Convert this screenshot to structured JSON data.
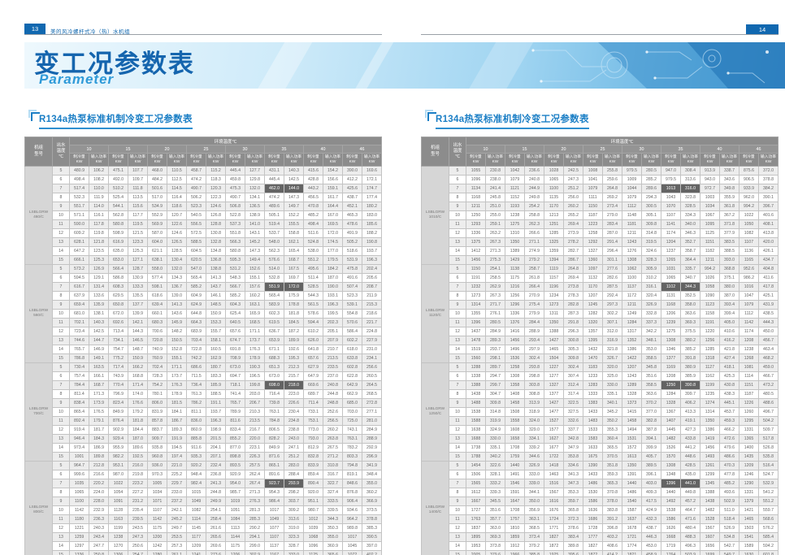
{
  "page": {
    "left_page_number": "13",
    "right_page_number": "14",
    "header_text": "美的风冷螺杆式冷（热）水机组",
    "banner_title": "变工况参数表",
    "banner_subtitle": "Parameter"
  },
  "colors": {
    "brand_blue": "#1168b0",
    "title_blue": "#1a7ec5",
    "header_gray": "#8c8c8c",
    "highlight_gray": "#636363",
    "stripe_gray": "#ededed"
  },
  "tables": [
    {
      "title": "R134a热泵标准机制冷变工况参数表",
      "header": {
        "model": "机组型号",
        "outlet": "出水温度℃",
        "ambient": "环境温度℃",
        "temps": [
          "10",
          "15",
          "20",
          "25",
          "30",
          "35",
          "40",
          "46"
        ],
        "capacity_label": "制冷量",
        "power_label": "输入功率",
        "unit": "KW"
      },
      "highlight": {
        "outlet": "7",
        "temp": "35"
      },
      "groups": [
        {
          "model": "LSBLGRW460/C",
          "rows": [
            {
              "t": "5",
              "v": "480.9 106.2 475.1 107.7 468.0 110.5 458.7 115.2 445.4 127.7 431.1 140.3 415.6 154.2 390.0 169.6"
            },
            {
              "t": "6",
              "v": "498.4 108.2 492.0 109.7 484.2 112.5 474.2 118.3 459.8 129.8 445.4 142.5 428.8 156.6 412.2 172.1"
            },
            {
              "t": "7",
              "v": "517.4 110.0 510.2 111.8 501.6 114.5 490.7 120.3 475.3 132.0 462.0 144.0 443.2 159.1 425.6 174.7"
            },
            {
              "t": "8",
              "v": "532.3 111.9 525.4 113.5 517.0 116.4 506.2 122.3 490.7 134.1 474.2 147.3 456.5 161.7 438.7 177.4"
            },
            {
              "t": "9",
              "v": "551.7 114.0 544.1 115.6 534.9 118.6 523.3 124.6 506.8 136.5 489.6 149.7 470.8 164.4 452.1 180.2"
            },
            {
              "t": "10",
              "v": "571.1 116.1 562.8 117.7 552.9 120.7 540.5 126.8 522.8 138.9 505.1 152.2 485.2 167.0 465.3 183.0"
            },
            {
              "t": "11",
              "v": "590.0 117.8 580.8 119.5 569.9 122.6 556.5 128.8 537.3 141.0 519.4 155.5 498.4 169.5 478.6 185.6"
            },
            {
              "t": "12",
              "v": "609.2 119.8 598.9 121.5 587.0 124.6 572.5 130.8 551.8 143.1 533.7 158.8 511.6 172.0 491.9 188.2"
            },
            {
              "t": "13",
              "v": "628.1 121.8 616.9 123.3 604.0 126.5 588.5 132.8 566.3 145.2 548.0 162.1 524.8 174.5 505.2 190.8"
            },
            {
              "t": "14",
              "v": "647.2 123.5 635.0 125.3 621.1 128.5 604.5 134.8 580.8 147.3 562.3 165.4 538.0 177.0 518.6 193.7"
            },
            {
              "t": "15",
              "v": "666.1 125.3 653.0 127.1 638.1 130.4 620.5 136.8 595.3 149.4 576.6 168.7 551.2 179.5 531.9 196.3"
            }
          ]
        },
        {
          "model": "LSBLGRW560/C",
          "rows": [
            {
              "t": "5",
              "v": "573.2 126.9 566.4 128.7 558.0 132.0 547.0 138.8 531.2 152.6 514.0 167.5 495.6 184.2 475.8 202.4"
            },
            {
              "t": "6",
              "v": "594.5 129.1 586.8 130.9 577.4 134.3 565.4 141.3 548.3 155.1 532.8 169.7 511.4 187.0 491.6 205.6"
            },
            {
              "t": "7",
              "v": "616.7 131.4 608.3 133.3 598.1 136.7 585.2 143.7 566.7 157.6 551.9 172.0 528.5 190.0 507.4 208.7"
            },
            {
              "t": "8",
              "v": "637.9 133.6 629.5 135.5 618.6 139.0 604.9 146.1 585.2 160.2 565.4 175.9 544.3 193.1 523.3 211.9"
            },
            {
              "t": "9",
              "v": "659.4 135.9 650.8 137.7 639.4 141.3 624.9 148.5 604.3 163.1 583.9 178.8 561.5 196.3 539.1 215.3"
            },
            {
              "t": "10",
              "v": "681.0 138.1 672.0 139.9 660.1 143.6 644.8 150.9 625.4 165.9 602.3 181.8 578.6 199.5 554.8 218.6"
            },
            {
              "t": "11",
              "v": "702.1 140.3 692.6 142.1 680.3 145.9 664.3 153.3 640.5 168.5 619.5 184.5 594.4 202.3 570.6 221.7"
            },
            {
              "t": "12",
              "v": "723.4 142.5 713.4 144.3 700.6 148.2 683.9 155.7 657.6 171.1 636.7 187.2 610.2 205.1 586.4 224.8"
            },
            {
              "t": "13",
              "v": "744.6 144.7 734.1 146.5 720.8 150.5 703.4 158.1 674.7 173.7 653.9 189.9 626.0 207.9 602.2 227.9"
            },
            {
              "t": "14",
              "v": "765.7 146.9 754.7 148.7 740.9 152.8 722.8 160.5 691.8 176.3 671.1 192.6 641.8 210.7 618.0 231.0"
            },
            {
              "t": "15",
              "v": "786.8 149.1 775.2 150.9 760.9 155.1 742.2 162.9 708.9 178.9 688.3 195.3 657.6 213.5 633.8 234.1"
            }
          ]
        },
        {
          "model": "LSBLGRW700/C",
          "rows": [
            {
              "t": "5",
              "v": "730.4 163.5 717.4 166.2 702.4 171.1 686.6 180.7 673.0 190.3 651.3 212.3 627.9 233.5 602.8 256.6"
            },
            {
              "t": "6",
              "v": "757.4 166.1 743.9 168.8 728.3 173.7 711.5 183.3 694.7 196.5 673.0 215.7 647.9 237.0 622.8 260.5"
            },
            {
              "t": "7",
              "v": "784.4 168.7 770.4 171.4 754.2 176.3 736.4 185.9 718.1 199.8 698.0 218.0 669.6 240.8 642.9 264.5"
            },
            {
              "t": "8",
              "v": "811.4 171.3 796.9 174.0 780.1 178.9 761.3 188.5 741.4 203.0 716.4 223.0 689.7 244.8 662.9 268.5"
            },
            {
              "t": "9",
              "v": "838.4 173.9 823.4 176.6 806.0 181.5 786.2 191.1 765.7 206.7 739.8 226.6 711.4 248.8 685.0 272.8"
            },
            {
              "t": "10",
              "v": "865.4 176.5 849.9 179.2 831.9 184.1 811.1 193.7 789.9 210.3 763.1 230.4 733.1 252.6 703.0 277.1"
            },
            {
              "t": "11",
              "v": "892.4 179.1 876.4 181.8 857.8 186.7 836.0 196.3 811.6 213.5 784.8 234.8 753.1 256.5 725.0 281.0"
            },
            {
              "t": "12",
              "v": "919.4 181.7 902.9 184.4 883.7 189.3 860.9 198.9 833.4 216.7 806.5 238.8 773.0 260.2 743.1 284.9"
            },
            {
              "t": "13",
              "v": "946.4 184.3 929.4 187.0 909.7 191.9 885.8 201.5 855.2 220.0 828.2 243.0 793.0 263.8 763.1 288.9"
            },
            {
              "t": "14",
              "v": "973.4 186.9 955.9 189.6 935.8 194.5 911.6 204.1 877.0 223.1 849.9 247.1 812.9 267.5 783.2 292.9"
            },
            {
              "t": "15",
              "v": "1001 189.8 982.2 192.5 960.8 197.4 935.3 207.1 898.8 226.3 871.6 251.2 832.8 271.2 803.3 296.9"
            }
          ]
        },
        {
          "model": "LSBLGRW800/C",
          "rows": [
            {
              "t": "5",
              "v": "964.7 212.8 953.1 216.0 936.0 221.0 920.2 232.4 893.5 257.5 865.1 283.0 833.9 310.8 794.8 341.9"
            },
            {
              "t": "6",
              "v": "999.6 216.6 987.0 219.8 970.3 225.2 948.4 236.8 920.9 262.4 891.6 288.4 859.4 316.7 819.1 348.4"
            },
            {
              "t": "7",
              "v": "1035 220.2 1022 223.2 1005 229.7 982.4 241.3 954.0 267.4 923.7 293.9 890.4 322.7 848.6 355.0"
            },
            {
              "t": "8",
              "v": "1065 224.0 1054 227.2 1034 233.0 1015 244.8 985.7 271.3 954.3 298.2 920.0 327.4 876.8 360.2"
            },
            {
              "t": "9",
              "v": "1100 228.0 1091 231.2 1071 237.2 1049 249.9 1019 276.3 986.4 303.7 951.1 333.5 906.4 366.9"
            },
            {
              "t": "10",
              "v": "1142 232.9 1128 235.4 1107 242.1 1082 254.1 1051 281.3 1017 309.2 980.7 339.5 934.6 373.5"
            },
            {
              "t": "11",
              "v": "1180 236.3 1163 239.5 1142 245.2 1114 258.4 1084 285.3 1049 313.6 1012 344.3 964.2 378.8"
            },
            {
              "t": "12",
              "v": "1221 240.3 1199 243.5 1175 249.7 1145 261.6 1113 290.2 1077 319.0 1039 350.3 989.8 385.3"
            },
            {
              "t": "13",
              "v": "1259 243.4 1238 247.3 1200 253.5 1177 265.6 1144 294.1 1107 323.3 1068 355.0 1017 390.5"
            },
            {
              "t": "14",
              "v": "1297 247.7 1270 250.6 1242 257.3 1209 269.6 1175 299.0 1137 328.7 1096 360.9 1045 397.0"
            },
            {
              "t": "15",
              "v": "1336 250.8 1306 254.7 1280 261.1 1241 273.6 1206 302.9 1167 333.0 1125 365.6 1072 402.2"
            }
          ]
        }
      ]
    },
    {
      "title": "R134a热泵标准机制冷变工况参数表",
      "header": {
        "model": "机组型号",
        "outlet": "出水温度℃",
        "ambient": "环境温度℃",
        "temps": [
          "10",
          "15",
          "20",
          "25",
          "30",
          "35",
          "40",
          "46"
        ],
        "capacity_label": "制冷量",
        "power_label": "输入功率",
        "unit": "KW"
      },
      "highlight": {
        "outlet": "7",
        "temp": "35"
      },
      "groups": [
        {
          "model": "LSBLGRW1010/C",
          "rows": [
            {
              "t": "5",
              "v": "1055 230.8 1042 236.6 1028 242.5 1008 255.8 979.5 280.5 947.0 308.4 913.9 338.7 875.6 372.0"
            },
            {
              "t": "6",
              "v": "1096 238.0 1079 240.8 1065 247.3 1041 259.6 1009 285.2 979.5 313.6 943.0 343.6 906.5 378.8"
            },
            {
              "t": "7",
              "v": "1134 241.4 1121 244.9 1100 251.2 1079 264.8 1044 289.6 1013 316.0 972.7 349.8 933.9 384.2"
            },
            {
              "t": "8",
              "v": "1168 245.8 1152 249.8 1135 256.0 1111 269.2 1079 294.3 1043 323.8 1003 355.9 962.0 390.1"
            },
            {
              "t": "9",
              "v": "1211 251.0 1193 254.2 1170 260.2 1150 273.4 1112 300.5 1070 328.5 1034 361.8 994.2 396.7"
            },
            {
              "t": "10",
              "v": "1250 255.0 1238 258.8 1213 265.2 1187 279.0 1148 305.1 1107 334.3 1067 367.2 1022 401.6"
            },
            {
              "t": "11",
              "v": "1293 259.1 1275 262.3 1251 269.4 1223 283.4 1181 309.8 1141 340.0 1095 371.8 1050 408.1"
            },
            {
              "t": "12",
              "v": "1336 263.2 1310 266.6 1285 273.9 1258 287.0 1211 314.8 1174 346.3 1125 377.9 1082 413.8"
            },
            {
              "t": "13",
              "v": "1375 267.3 1350 271.1 1325 278.2 1292 291.4 1243 319.5 1204 352.7 1151 383.5 1107 420.0"
            },
            {
              "t": "14",
              "v": "1412 271.3 1389 274.9 1359 282.7 1327 296.4 1276 324.6 1237 358.7 1182 388.5 1136 426.1"
            },
            {
              "t": "15",
              "v": "1456 275.3 1429 279.2 1394 286.7 1360 301.1 1308 328.3 1265 364.4 1211 393.0 1165 434.7"
            }
          ]
        },
        {
          "model": "LSBLGRW1120/C",
          "rows": [
            {
              "t": "5",
              "v": "1150 254.1 1138 258.7 1119 264.8 1097 277.6 1062 305.9 1031 335.7 994.2 368.8 952.6 404.8"
            },
            {
              "t": "6",
              "v": "1191 258.5 1175 261.8 1157 269.4 1132 282.6 1100 310.2 1065 340.7 1026 375.1 986.2 411.6"
            },
            {
              "t": "7",
              "v": "1232 262.9 1216 266.4 1196 273.8 1170 287.5 1137 316.1 1102 344.3 1058 380.0 1016 417.8"
            },
            {
              "t": "8",
              "v": "1273 267.3 1256 270.9 1234 278.3 1207 292.4 1172 320.4 1131 352.5 1090 387.0 1047 425.1"
            },
            {
              "t": "9",
              "v": "1314 271.7 1296 275.4 1273 282.8 1245 297.3 1211 326.9 1168 358.0 1123 393.4 1079 431.9"
            },
            {
              "t": "10",
              "v": "1355 276.1 1336 279.9 1311 287.3 1282 302.2 1249 332.8 1206 363.6 1158 399.4 1112 438.5"
            },
            {
              "t": "11",
              "v": "1396 280.5 1376 284.4 1350 291.8 1320 307.1 1284 337.3 1239 369.3 1191 405.0 1142 444.3"
            },
            {
              "t": "12",
              "v": "1437 284.9 1416 288.9 1388 296.3 1357 312.0 1317 342.2 1275 375.5 1220 410.6 1174 450.0"
            },
            {
              "t": "13",
              "v": "1478 289.3 1456 293.4 1427 300.8 1395 316.9 1352 348.1 1308 380.2 1256 416.2 1208 456.7"
            },
            {
              "t": "14",
              "v": "1519 293.7 1496 297.9 1465 305.3 1432 321.8 1386 353.0 1346 385.2 1285 421.8 1238 463.4"
            },
            {
              "t": "15",
              "v": "1560 298.1 1536 302.4 1504 309.8 1470 326.7 1422 358.5 1377 391.8 1318 427.4 1268 468.2"
            }
          ]
        },
        {
          "model": "LSBLGRW1250/C",
          "rows": [
            {
              "t": "5",
              "v": "1288 289.7 1258 293.8 1227 302.4 1183 320.0 1207 345.8 1169 380.9 1127 418.1 1081 459.0"
            },
            {
              "t": "6",
              "v": "1338 294.7 1308 298.8 1277 307.4 1233 325.0 1243 351.6 1208 385.9 1162 425.3 1114 466.7"
            },
            {
              "t": "7",
              "v": "1388 299.7 1358 303.8 1327 312.4 1283 330.0 1289 358.5 1250 390.8 1199 430.8 1151 473.2"
            },
            {
              "t": "8",
              "v": "1438 304.7 1408 308.8 1377 317.4 1333 335.1 1328 363.6 1284 399.7 1235 438.3 1187 480.5"
            },
            {
              "t": "9",
              "v": "1488 309.8 1458 313.9 1427 322.5 1383 340.1 1373 370.2 1328 406.2 1274 445.1 1226 488.6"
            },
            {
              "t": "10",
              "v": "1538 314.8 1508 318.9 1477 327.5 1433 345.2 1415 377.0 1367 413.3 1314 453.7 1260 496.7"
            },
            {
              "t": "11",
              "v": "1588 319.9 1558 324.0 1527 332.6 1483 350.2 1458 382.8 1407 419.1 1350 459.3 1295 504.2"
            },
            {
              "t": "12",
              "v": "1638 324.9 1608 329.0 1577 337.7 1533 355.3 1494 387.8 1445 427.3 1386 466.2 1331 509.7"
            },
            {
              "t": "13",
              "v": "1688 330.0 1658 334.1 1627 342.8 1583 360.4 1531 394.1 1482 433.8 1419 472.6 1365 517.8"
            },
            {
              "t": "14",
              "v": "1738 335.1 1708 339.2 1677 347.9 1633 365.5 1572 399.9 1526 441.2 1456 479.6 1400 526.8"
            },
            {
              "t": "15",
              "v": "1788 340.2 1759 344.6 1722 353.8 1675 370.5 1613 405.7 1570 448.6 1493 486.6 1435 535.8"
            }
          ]
        },
        {
          "model": "LSBLGRW1400/C",
          "rows": [
            {
              "t": "5",
              "v": "1454 322.6 1440 326.9 1418 334.6 1390 351.8 1350 389.5 1308 428.5 1261 470.3 1209 516.4"
            },
            {
              "t": "6",
              "v": "1506 328.1 1491 333.0 1463 341.3 1433 359.3 1391 396.1 1348 435.0 1299 477.8 1246 524.7"
            },
            {
              "t": "7",
              "v": "1565 333.2 1546 339.0 1516 347.3 1486 365.3 1440 403.0 1396 441.0 1345 485.2 1290 532.9"
            },
            {
              "t": "8",
              "v": "1612 339.3 1591 344.1 1567 353.3 1530 370.8 1486 409.3 1440 449.8 1388 493.6 1331 541.2"
            },
            {
              "t": "9",
              "v": "1667 345.5 1647 350.0 1616 359.7 1586 378.0 1540 417.5 1492 457.2 1438 502.9 1379 551.2"
            },
            {
              "t": "10",
              "v": "1727 351.6 1708 356.9 1676 365.8 1636 383.8 1587 424.9 1538 464.7 1482 511.0 1421 559.7"
            },
            {
              "t": "11",
              "v": "1763 357.7 1757 363.1 1724 372.3 1686 391.2 1637 432.3 1586 471.6 1528 518.4 1465 568.6"
            },
            {
              "t": "12",
              "v": "1837 363.0 1810 368.5 1771 378.6 1728 396.8 1678 438.7 1626 480.4 1567 526.9 1503 576.2"
            },
            {
              "t": "13",
              "v": "1895 369.3 1859 373.4 1827 383.4 1777 403.2 1721 446.3 1668 488.3 1607 534.8 1541 585.4"
            },
            {
              "t": "14",
              "v": "1953 373.8 1912 379.2 1872 389.8 1827 408.6 1774 453.0 1719 496.3 1656 542.7 1589 594.2"
            },
            {
              "t": "15",
              "v": "2005 379.6 1966 385.8 1925 395.6 1872 414.2 1821 458.9 1764 503.9 1699 549.7 1630 601.8"
            }
          ]
        }
      ]
    }
  ]
}
